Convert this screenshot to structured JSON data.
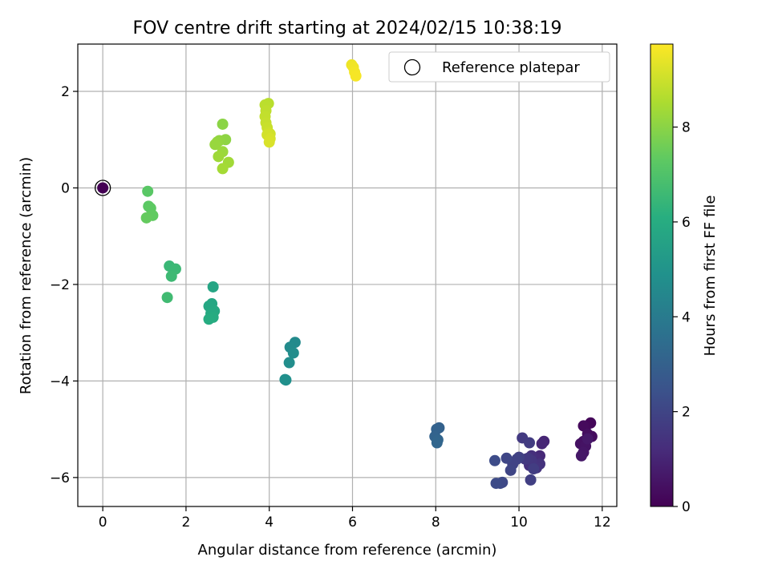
{
  "chart_data": {
    "type": "scatter",
    "title": "FOV centre drift starting at 2024/02/15 10:38:19",
    "xlabel": "Angular distance from reference (arcmin)",
    "ylabel": "Rotation from reference (arcmin)",
    "xlim": [
      -0.6,
      12.35
    ],
    "ylim": [
      -6.6,
      2.98
    ],
    "xticks": [
      0,
      2,
      4,
      6,
      8,
      10,
      12
    ],
    "xtick_labels": [
      "0",
      "2",
      "4",
      "6",
      "8",
      "10",
      "12"
    ],
    "yticks": [
      -6,
      -4,
      -2,
      0,
      2
    ],
    "ytick_labels": [
      "−6",
      "−4",
      "−2",
      "0",
      "2"
    ],
    "grid": true,
    "legend": {
      "position": "top-right",
      "entries": [
        "Reference platepar"
      ]
    },
    "reference_point": {
      "x": 0,
      "y": 0,
      "hours": 0
    },
    "colorbar": {
      "label": "Hours from first FF file",
      "colormap": "viridis",
      "range": [
        0,
        9.75
      ],
      "ticks": [
        0,
        2,
        4,
        6,
        8
      ],
      "tick_labels": [
        "0",
        "2",
        "4",
        "6",
        "8"
      ]
    },
    "points": [
      {
        "x": 11.72,
        "y": -4.87,
        "hours": 0.15
      },
      {
        "x": 11.6,
        "y": -4.95,
        "hours": 0.2
      },
      {
        "x": 11.55,
        "y": -4.93,
        "hours": 0.25
      },
      {
        "x": 11.75,
        "y": -5.15,
        "hours": 0.3
      },
      {
        "x": 11.65,
        "y": -5.1,
        "hours": 0.35
      },
      {
        "x": 11.55,
        "y": -5.25,
        "hours": 0.4
      },
      {
        "x": 11.48,
        "y": -5.3,
        "hours": 0.45
      },
      {
        "x": 11.6,
        "y": -5.35,
        "hours": 0.5
      },
      {
        "x": 11.55,
        "y": -5.48,
        "hours": 0.55
      },
      {
        "x": 11.5,
        "y": -5.55,
        "hours": 0.6
      },
      {
        "x": 11.65,
        "y": -5.2,
        "hours": 0.65
      },
      {
        "x": 10.6,
        "y": -5.25,
        "hours": 1.0
      },
      {
        "x": 10.55,
        "y": -5.3,
        "hours": 1.05
      },
      {
        "x": 10.5,
        "y": -5.55,
        "hours": 1.1
      },
      {
        "x": 10.45,
        "y": -5.65,
        "hours": 1.15
      },
      {
        "x": 10.4,
        "y": -5.6,
        "hours": 1.2
      },
      {
        "x": 10.35,
        "y": -5.7,
        "hours": 1.25
      },
      {
        "x": 10.3,
        "y": -5.55,
        "hours": 1.3
      },
      {
        "x": 10.25,
        "y": -5.75,
        "hours": 1.35
      },
      {
        "x": 10.5,
        "y": -5.72,
        "hours": 1.4
      },
      {
        "x": 10.42,
        "y": -5.8,
        "hours": 1.45
      },
      {
        "x": 10.3,
        "y": -5.65,
        "hours": 1.5
      },
      {
        "x": 10.22,
        "y": -5.6,
        "hours": 1.55
      },
      {
        "x": 10.15,
        "y": -5.62,
        "hours": 1.6
      },
      {
        "x": 10.08,
        "y": -5.18,
        "hours": 1.65
      },
      {
        "x": 10.25,
        "y": -5.28,
        "hours": 1.7
      },
      {
        "x": 10.35,
        "y": -5.82,
        "hours": 1.75
      },
      {
        "x": 10.28,
        "y": -6.05,
        "hours": 1.8
      },
      {
        "x": 10.0,
        "y": -5.58,
        "hours": 1.85
      },
      {
        "x": 9.95,
        "y": -5.62,
        "hours": 1.9
      },
      {
        "x": 9.85,
        "y": -5.72,
        "hours": 1.95
      },
      {
        "x": 9.8,
        "y": -5.85,
        "hours": 2.0
      },
      {
        "x": 9.7,
        "y": -5.6,
        "hours": 2.05
      },
      {
        "x": 9.6,
        "y": -6.1,
        "hours": 2.1
      },
      {
        "x": 9.55,
        "y": -6.12,
        "hours": 2.15
      },
      {
        "x": 9.45,
        "y": -6.12,
        "hours": 2.2
      },
      {
        "x": 9.42,
        "y": -5.65,
        "hours": 2.25
      },
      {
        "x": 8.08,
        "y": -4.97,
        "hours": 3.0
      },
      {
        "x": 8.02,
        "y": -5.0,
        "hours": 3.05
      },
      {
        "x": 7.98,
        "y": -5.15,
        "hours": 3.1
      },
      {
        "x": 8.05,
        "y": -5.22,
        "hours": 3.15
      },
      {
        "x": 8.03,
        "y": -5.28,
        "hours": 3.2
      },
      {
        "x": 4.62,
        "y": -3.2,
        "hours": 4.6
      },
      {
        "x": 4.5,
        "y": -3.3,
        "hours": 4.65
      },
      {
        "x": 4.58,
        "y": -3.42,
        "hours": 4.7
      },
      {
        "x": 4.48,
        "y": -3.62,
        "hours": 4.75
      },
      {
        "x": 4.38,
        "y": -3.97,
        "hours": 4.8
      },
      {
        "x": 4.4,
        "y": -3.98,
        "hours": 4.85
      },
      {
        "x": 2.65,
        "y": -2.05,
        "hours": 5.7
      },
      {
        "x": 2.62,
        "y": -2.4,
        "hours": 5.75
      },
      {
        "x": 2.55,
        "y": -2.45,
        "hours": 5.8
      },
      {
        "x": 2.68,
        "y": -2.55,
        "hours": 5.85
      },
      {
        "x": 2.6,
        "y": -2.6,
        "hours": 5.9
      },
      {
        "x": 2.65,
        "y": -2.68,
        "hours": 5.95
      },
      {
        "x": 2.55,
        "y": -2.72,
        "hours": 6.0
      },
      {
        "x": 1.6,
        "y": -1.62,
        "hours": 6.5
      },
      {
        "x": 1.75,
        "y": -1.68,
        "hours": 6.55
      },
      {
        "x": 1.65,
        "y": -1.83,
        "hours": 6.6
      },
      {
        "x": 1.55,
        "y": -2.27,
        "hours": 6.65
      },
      {
        "x": 1.08,
        "y": -0.07,
        "hours": 7.2
      },
      {
        "x": 1.1,
        "y": -0.38,
        "hours": 7.25
      },
      {
        "x": 1.15,
        "y": -0.42,
        "hours": 7.3
      },
      {
        "x": 1.2,
        "y": -0.57,
        "hours": 7.35
      },
      {
        "x": 1.05,
        "y": -0.62,
        "hours": 7.4
      },
      {
        "x": 2.88,
        "y": 1.32,
        "hours": 8.0
      },
      {
        "x": 2.95,
        "y": 1.0,
        "hours": 8.05
      },
      {
        "x": 2.8,
        "y": 0.98,
        "hours": 8.1
      },
      {
        "x": 2.75,
        "y": 0.95,
        "hours": 8.15
      },
      {
        "x": 2.7,
        "y": 0.9,
        "hours": 8.2
      },
      {
        "x": 2.88,
        "y": 0.75,
        "hours": 8.25
      },
      {
        "x": 2.78,
        "y": 0.65,
        "hours": 8.3
      },
      {
        "x": 3.02,
        "y": 0.53,
        "hours": 8.35
      },
      {
        "x": 2.88,
        "y": 0.4,
        "hours": 8.4
      },
      {
        "x": 3.98,
        "y": 1.75,
        "hours": 8.7
      },
      {
        "x": 3.9,
        "y": 1.72,
        "hours": 8.75
      },
      {
        "x": 3.92,
        "y": 1.6,
        "hours": 8.8
      },
      {
        "x": 3.9,
        "y": 1.48,
        "hours": 8.85
      },
      {
        "x": 3.92,
        "y": 1.35,
        "hours": 8.9
      },
      {
        "x": 3.95,
        "y": 1.25,
        "hours": 8.95
      },
      {
        "x": 3.98,
        "y": 1.15,
        "hours": 9.0
      },
      {
        "x": 4.02,
        "y": 1.12,
        "hours": 9.05
      },
      {
        "x": 3.95,
        "y": 1.1,
        "hours": 9.1
      },
      {
        "x": 4.02,
        "y": 1.02,
        "hours": 9.15
      },
      {
        "x": 4.0,
        "y": 0.95,
        "hours": 9.2
      },
      {
        "x": 5.98,
        "y": 2.55,
        "hours": 9.5
      },
      {
        "x": 6.02,
        "y": 2.5,
        "hours": 9.55
      },
      {
        "x": 6.05,
        "y": 2.4,
        "hours": 9.6
      },
      {
        "x": 6.08,
        "y": 2.32,
        "hours": 9.65
      }
    ]
  }
}
